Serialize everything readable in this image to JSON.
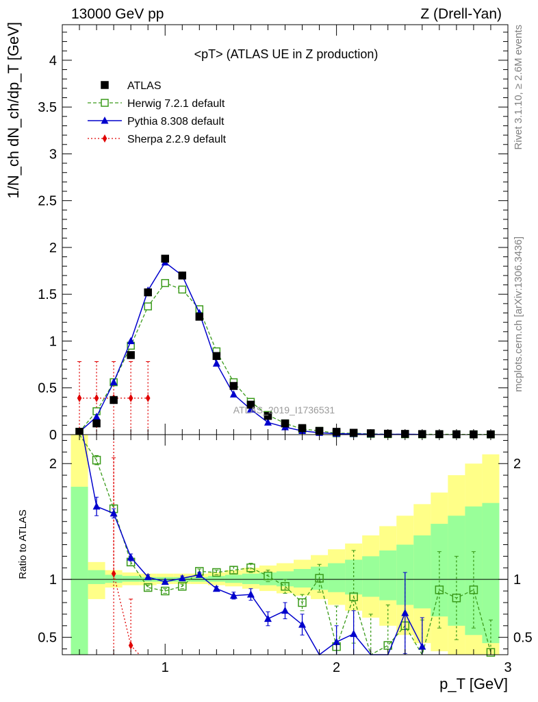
{
  "header": {
    "left": "13000 GeV pp",
    "right": "Z (Drell-Yan)"
  },
  "side": {
    "rivet": "Rivet 3.1.10, ≥ 2.6M events",
    "mcplots": "mcplots.cern.ch [arXiv:1306.3436]"
  },
  "colors": {
    "atlas": "#000000",
    "herwig": "#3a9a1a",
    "pythia": "#0000cc",
    "sherpa": "#e00000",
    "band_green": "#99ff99",
    "band_yellow": "#ffff88"
  },
  "chart_data": [
    {
      "type": "line",
      "title": "<pT> (ATLAS UE in Z production)",
      "watermark": "ATLAS_2019_I1736531",
      "ylabel": "1/N_ch dN_ch/dp_T [GeV]",
      "xlim": [
        0.4,
        3.0
      ],
      "ylim": [
        0,
        4.38
      ],
      "yticks": [
        "0",
        "0.5",
        "1",
        "1.5",
        "2",
        "2.5",
        "3",
        "3.5",
        "4"
      ],
      "ytick_values": [
        0,
        0.5,
        1,
        1.5,
        2,
        2.5,
        3,
        3.5,
        4
      ],
      "legend_position": "top-left",
      "series": [
        {
          "name": "ATLAS",
          "style": "square-filled",
          "x": [
            0.5,
            0.6,
            0.7,
            0.8,
            0.9,
            1.0,
            1.1,
            1.2,
            1.3,
            1.4,
            1.5,
            1.6,
            1.7,
            1.8,
            1.9,
            2.0,
            2.1,
            2.2,
            2.3,
            2.4,
            2.5,
            2.6,
            2.7,
            2.8,
            2.9
          ],
          "y": [
            0.03,
            0.12,
            0.37,
            0.85,
            1.52,
            1.88,
            1.7,
            1.26,
            0.84,
            0.52,
            0.32,
            0.2,
            0.12,
            0.07,
            0.04,
            0.03,
            0.02,
            0.015,
            0.01,
            0.008,
            0.006,
            0.005,
            0.004,
            0.003,
            0.003
          ]
        },
        {
          "name": "Herwig 7.2.1 default",
          "style": "square-open-dashed",
          "x": [
            0.5,
            0.6,
            0.7,
            0.8,
            0.9,
            1.0,
            1.1,
            1.2,
            1.3,
            1.4,
            1.5,
            1.6,
            1.7,
            1.8,
            1.9,
            2.0,
            2.1,
            2.2,
            2.3,
            2.4,
            2.5,
            2.6,
            2.7,
            2.8,
            2.9
          ],
          "y": [
            0.03,
            0.25,
            0.56,
            0.95,
            1.37,
            1.62,
            1.55,
            1.34,
            0.89,
            0.56,
            0.35,
            0.21,
            0.12,
            0.06,
            0.04,
            0.015,
            0.015,
            0.008,
            0.005,
            0.004,
            0.003,
            0.004,
            0.003,
            0.003,
            0.002
          ]
        },
        {
          "name": "Pythia 8.308 default",
          "style": "triangle-solid",
          "x": [
            0.5,
            0.6,
            0.7,
            0.8,
            0.9,
            1.0,
            1.1,
            1.2,
            1.3,
            1.4,
            1.5,
            1.6,
            1.7,
            1.8,
            1.9,
            2.0,
            2.1,
            2.2,
            2.3,
            2.4,
            2.5
          ],
          "y": [
            0.03,
            0.19,
            0.56,
            1.0,
            1.54,
            1.84,
            1.7,
            1.3,
            0.76,
            0.43,
            0.27,
            0.13,
            0.08,
            0.04,
            0.02,
            0.01,
            0.008,
            0.004,
            0.003,
            0.005,
            0.002
          ]
        },
        {
          "name": "Sherpa 2.2.9 default",
          "style": "diamond-dotted",
          "x": [
            0.5,
            0.6,
            0.7,
            0.8,
            0.9
          ],
          "y": [
            0.39,
            0.39,
            0.39,
            0.39,
            0.39
          ],
          "err": [
            0.39,
            0.39,
            0.39,
            0.39,
            0.39
          ]
        }
      ]
    },
    {
      "type": "line",
      "ylabel": "Ratio to ATLAS",
      "xlabel": "p_T [GeV]",
      "xlim": [
        0.4,
        3.0
      ],
      "ylim": [
        0.35,
        2.25
      ],
      "xticks": [
        "1",
        "2",
        "3"
      ],
      "xtick_values": [
        1,
        2,
        3
      ],
      "yticks": [
        "0.5",
        "1",
        "2"
      ],
      "ytick_values": [
        0.5,
        1,
        2
      ],
      "reference_line": 1,
      "bands": {
        "edges": [
          0.45,
          0.55,
          0.65,
          0.75,
          0.85,
          0.95,
          1.05,
          1.15,
          1.25,
          1.35,
          1.45,
          1.55,
          1.65,
          1.75,
          1.85,
          1.95,
          2.05,
          2.15,
          2.25,
          2.35,
          2.45,
          2.55,
          2.65,
          2.75,
          2.85,
          2.95
        ],
        "green": [
          [
            0.35,
            1.8
          ],
          [
            0.96,
            1.08
          ],
          [
            0.97,
            1.04
          ],
          [
            0.98,
            1.03
          ],
          [
            0.98,
            1.02
          ],
          [
            0.98,
            1.02
          ],
          [
            0.98,
            1.02
          ],
          [
            0.98,
            1.02
          ],
          [
            0.98,
            1.03
          ],
          [
            0.97,
            1.04
          ],
          [
            0.96,
            1.05
          ],
          [
            0.95,
            1.06
          ],
          [
            0.94,
            1.07
          ],
          [
            0.93,
            1.09
          ],
          [
            0.91,
            1.11
          ],
          [
            0.89,
            1.14
          ],
          [
            0.87,
            1.17
          ],
          [
            0.85,
            1.2
          ],
          [
            0.82,
            1.25
          ],
          [
            0.78,
            1.3
          ],
          [
            0.75,
            1.38
          ],
          [
            0.68,
            1.48
          ],
          [
            0.6,
            1.55
          ],
          [
            0.52,
            1.63
          ],
          [
            0.45,
            1.66
          ]
        ],
        "yellow": [
          [
            0.35,
            2.25
          ],
          [
            0.83,
            1.15
          ],
          [
            0.93,
            1.08
          ],
          [
            0.95,
            1.06
          ],
          [
            0.95,
            1.05
          ],
          [
            0.96,
            1.05
          ],
          [
            0.96,
            1.05
          ],
          [
            0.96,
            1.05
          ],
          [
            0.95,
            1.06
          ],
          [
            0.94,
            1.08
          ],
          [
            0.92,
            1.1
          ],
          [
            0.9,
            1.12
          ],
          [
            0.88,
            1.14
          ],
          [
            0.86,
            1.17
          ],
          [
            0.83,
            1.21
          ],
          [
            0.78,
            1.26
          ],
          [
            0.73,
            1.31
          ],
          [
            0.67,
            1.38
          ],
          [
            0.6,
            1.46
          ],
          [
            0.52,
            1.55
          ],
          [
            0.45,
            1.65
          ],
          [
            0.38,
            1.75
          ],
          [
            0.35,
            1.9
          ],
          [
            0.35,
            2.0
          ],
          [
            0.35,
            2.08
          ]
        ]
      },
      "series": [
        {
          "name": "Herwig 7.2.1 default",
          "x": [
            0.6,
            0.7,
            0.8,
            0.9,
            1.0,
            1.1,
            1.2,
            1.3,
            1.4,
            1.5,
            1.6,
            1.7,
            1.8,
            1.9,
            2.0,
            2.1,
            2.2,
            2.3,
            2.4,
            2.5,
            2.6,
            2.7,
            2.8,
            2.9
          ],
          "y": [
            2.03,
            1.61,
            1.15,
            0.93,
            0.9,
            0.94,
            1.07,
            1.06,
            1.08,
            1.1,
            1.03,
            0.94,
            0.8,
            1.01,
            0.42,
            0.85,
            0.2,
            0.43,
            0.6,
            0.3,
            0.91,
            0.84,
            0.91,
            0.37
          ],
          "err": [
            0.04,
            0.03,
            0.03,
            0.02,
            0.02,
            0.02,
            0.02,
            0.02,
            0.03,
            0.04,
            0.05,
            0.06,
            0.07,
            0.12,
            0.35,
            0.4,
            0.5,
            0.35,
            0.4,
            0.35,
            0.33,
            0.36,
            0.33,
            0.28
          ]
        },
        {
          "name": "Pythia 8.308 default",
          "x": [
            0.6,
            0.7,
            0.8,
            0.9,
            1.0,
            1.1,
            1.2,
            1.3,
            1.4,
            1.5,
            1.6,
            1.7,
            1.8,
            1.9,
            2.0,
            2.1,
            2.2,
            2.3,
            2.4,
            2.5
          ],
          "y": [
            1.63,
            1.57,
            1.19,
            1.02,
            0.98,
            1.01,
            1.04,
            0.92,
            0.86,
            0.87,
            0.66,
            0.73,
            0.61,
            0.2,
            0.46,
            0.53,
            0.2,
            0.2,
            0.71,
            0.42
          ],
          "err": [
            0.08,
            0.04,
            0.03,
            0.02,
            0.02,
            0.02,
            0.02,
            0.02,
            0.03,
            0.05,
            0.06,
            0.07,
            0.09,
            0.1,
            0.14,
            0.2,
            0.1,
            0.1,
            0.35,
            0.25
          ]
        },
        {
          "name": "Sherpa 2.2.9 default",
          "x": [
            0.7,
            0.8
          ],
          "y": [
            1.05,
            0.43
          ],
          "err": [
            1.0,
            0.4
          ]
        }
      ]
    }
  ]
}
